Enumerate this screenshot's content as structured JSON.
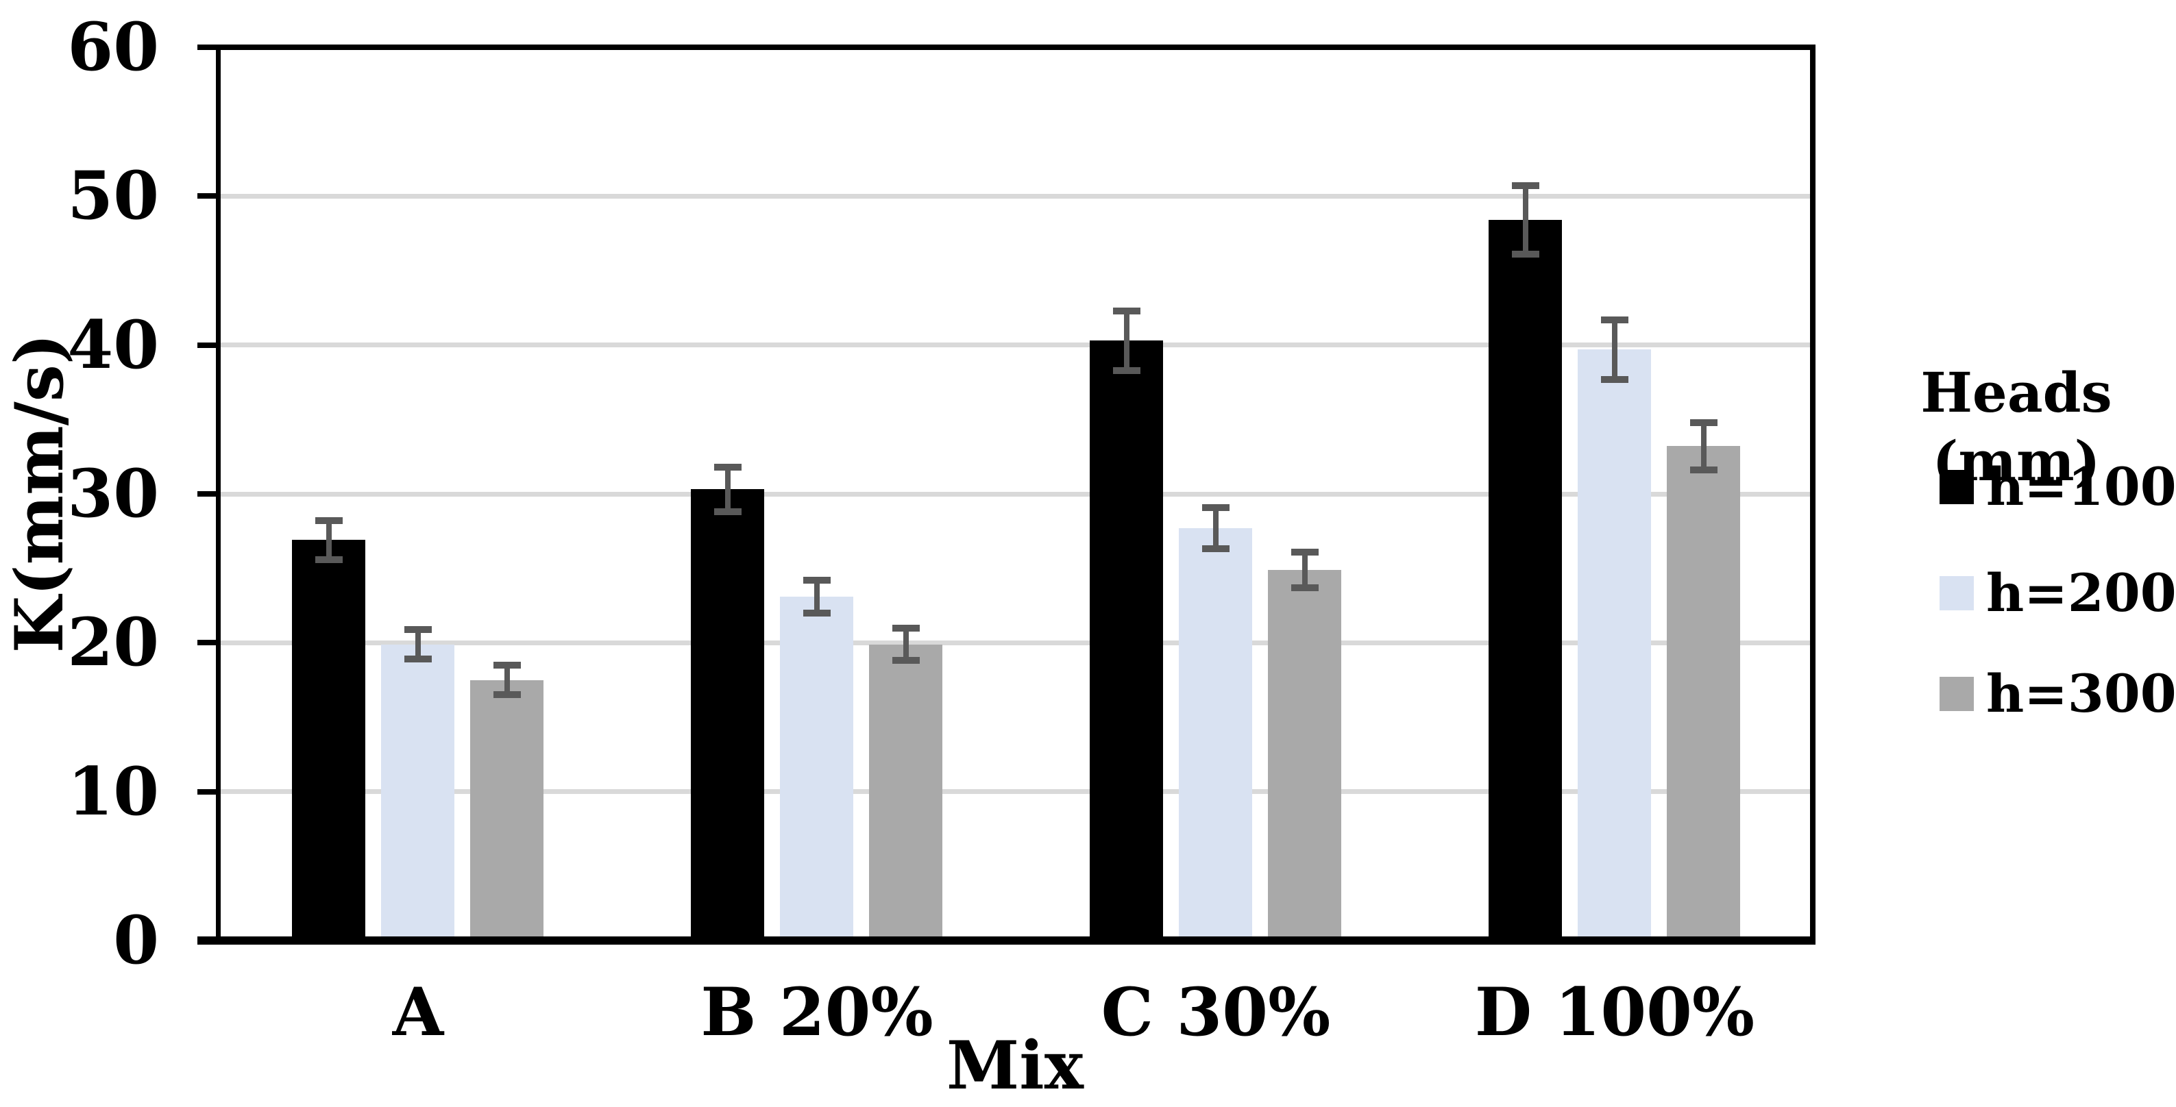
{
  "chart_data": {
    "type": "bar",
    "title": "",
    "xlabel": "Mix",
    "ylabel": "K(mm/s)",
    "ylim": [
      0,
      60
    ],
    "ytick_interval": 10,
    "ytick_labels": [
      "0",
      "10",
      "20",
      "30",
      "40",
      "50",
      "60"
    ],
    "categories": [
      "A",
      "B 20%",
      "C 30%",
      "D 100%"
    ],
    "series": [
      {
        "name": "h=100",
        "color": "#000000",
        "values": [
          26.9,
          30.3,
          40.3,
          48.4
        ],
        "errors": [
          1.3,
          1.5,
          2.0,
          2.3
        ]
      },
      {
        "name": "h=200",
        "color": "#D9E2F2",
        "values": [
          19.9,
          23.1,
          27.7,
          39.7
        ],
        "errors": [
          1.0,
          1.1,
          1.4,
          2.0
        ]
      },
      {
        "name": "h=300",
        "color": "#A9A9A9",
        "values": [
          17.5,
          19.9,
          24.9,
          33.2
        ],
        "errors": [
          1.0,
          1.1,
          1.2,
          1.6
        ]
      }
    ],
    "legend": {
      "title": "Heads (mm)",
      "position": "right",
      "entries": [
        "h=100",
        "h=200",
        "h=300"
      ]
    },
    "grid": true,
    "colors": {
      "error_bar": "#595959",
      "gridline": "#D9D9D9",
      "axis": "#000000",
      "background": "#FFFFFF"
    }
  }
}
